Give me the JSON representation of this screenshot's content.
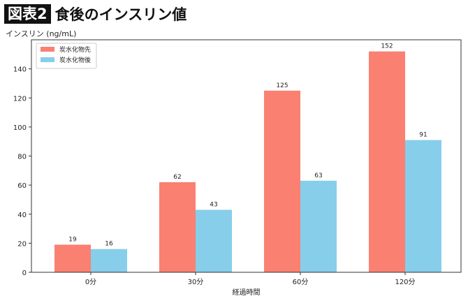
{
  "header": {
    "badge": "図表2",
    "title": "食後のインスリン値"
  },
  "chart_data": {
    "type": "bar",
    "categories": [
      "0分",
      "30分",
      "60分",
      "120分"
    ],
    "series": [
      {
        "name": "炭水化物先",
        "values": [
          19,
          62,
          125,
          152
        ],
        "color": "#fa8072"
      },
      {
        "name": "炭水化物後",
        "values": [
          16,
          43,
          63,
          91
        ],
        "color": "#87ceeb"
      }
    ],
    "xlabel": "経過時間",
    "ylabel": "インスリン (ng/mL)",
    "ylim": [
      0,
      160
    ],
    "yticks": [
      0,
      20,
      40,
      60,
      80,
      100,
      120,
      140
    ],
    "grid": false,
    "legend": "top-left",
    "data_labels": true
  }
}
